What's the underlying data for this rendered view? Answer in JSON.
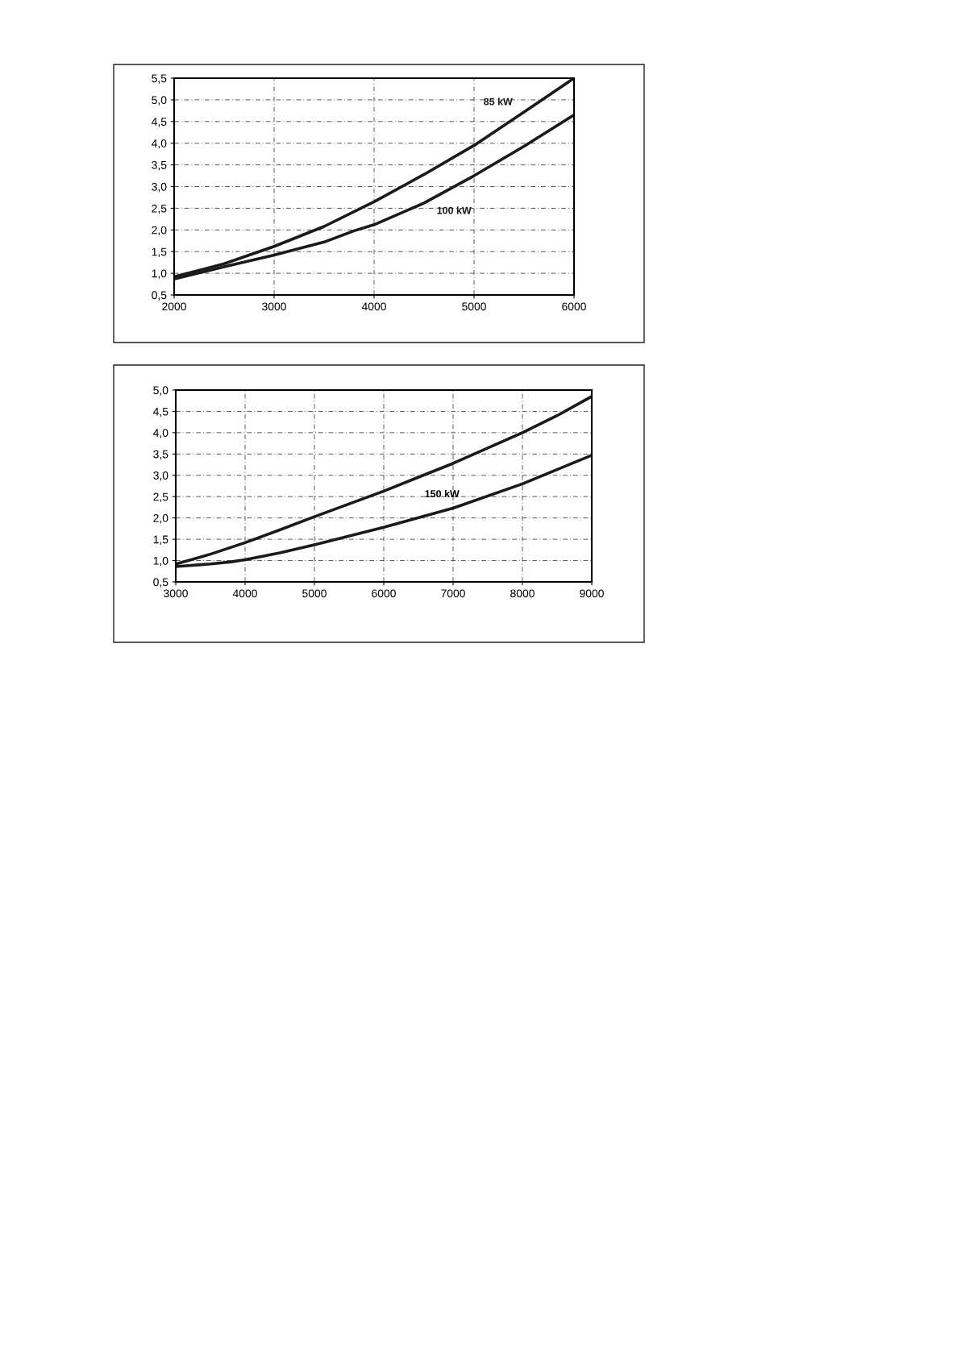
{
  "chart_data": [
    {
      "type": "line",
      "xlim": [
        2000,
        6000
      ],
      "ylim": [
        0.5,
        5.5
      ],
      "xticks": [
        2000,
        3000,
        4000,
        5000,
        6000
      ],
      "yticks": [
        {
          "value": 0.5,
          "label": "0,5"
        },
        {
          "value": 1.0,
          "label": "1,0"
        },
        {
          "value": 1.5,
          "label": "1,5"
        },
        {
          "value": 2.0,
          "label": "2,0"
        },
        {
          "value": 2.5,
          "label": "2,5"
        },
        {
          "value": 3.0,
          "label": "3,0"
        },
        {
          "value": 3.5,
          "label": "3,5"
        },
        {
          "value": 4.0,
          "label": "4,0"
        },
        {
          "value": 4.5,
          "label": "4,5"
        },
        {
          "value": 5.0,
          "label": "5,0"
        },
        {
          "value": 5.5,
          "label": "5,5"
        }
      ],
      "grid": true,
      "line_style": "solid",
      "marker": "none",
      "series": [
        {
          "name": "85 kW",
          "color": "#1a1a1a",
          "x": [
            2000,
            2500,
            3000,
            3500,
            4000,
            4500,
            5000,
            5500,
            6000
          ],
          "values": [
            0.92,
            1.22,
            1.62,
            2.08,
            2.65,
            3.28,
            3.95,
            4.72,
            5.5
          ]
        },
        {
          "name": "100 kW",
          "color": "#1a1a1a",
          "x": [
            2000,
            2500,
            3000,
            3500,
            3800,
            4000,
            4500,
            5000,
            5500,
            6000
          ],
          "values": [
            0.87,
            1.15,
            1.42,
            1.72,
            1.98,
            2.12,
            2.62,
            3.25,
            3.93,
            4.65
          ]
        }
      ]
    },
    {
      "type": "line",
      "xlim": [
        3000,
        9000
      ],
      "ylim": [
        0.5,
        5.0
      ],
      "xticks": [
        3000,
        4000,
        5000,
        6000,
        7000,
        8000,
        9000
      ],
      "yticks": [
        {
          "value": 0.5,
          "label": "0,5"
        },
        {
          "value": 1.0,
          "label": "1,0"
        },
        {
          "value": 1.5,
          "label": "1,5"
        },
        {
          "value": 2.0,
          "label": "2,0"
        },
        {
          "value": 2.5,
          "label": "2,5"
        },
        {
          "value": 3.0,
          "label": "3,0"
        },
        {
          "value": 3.5,
          "label": "3,5"
        },
        {
          "value": 4.0,
          "label": "4,0"
        },
        {
          "value": 4.5,
          "label": "4,5"
        },
        {
          "value": 5.0,
          "label": "5,0"
        }
      ],
      "grid": true,
      "line_style": "solid",
      "marker": "none",
      "series": [
        {
          "color": "#1a1a1a",
          "x": [
            3000,
            3500,
            4000,
            4500,
            5000,
            6000,
            7000,
            8000,
            8500,
            9000
          ],
          "values": [
            0.92,
            1.15,
            1.42,
            1.72,
            2.03,
            2.63,
            3.28,
            4.0,
            4.4,
            4.85
          ]
        },
        {
          "color": "#1a1a1a",
          "x": [
            3000,
            3500,
            3800,
            4000,
            4500,
            5000,
            6000,
            7000,
            8000,
            9000
          ],
          "values": [
            0.86,
            0.92,
            0.97,
            1.02,
            1.18,
            1.37,
            1.78,
            2.23,
            2.8,
            3.47
          ]
        }
      ],
      "annotations": [
        "150 kW"
      ]
    }
  ]
}
